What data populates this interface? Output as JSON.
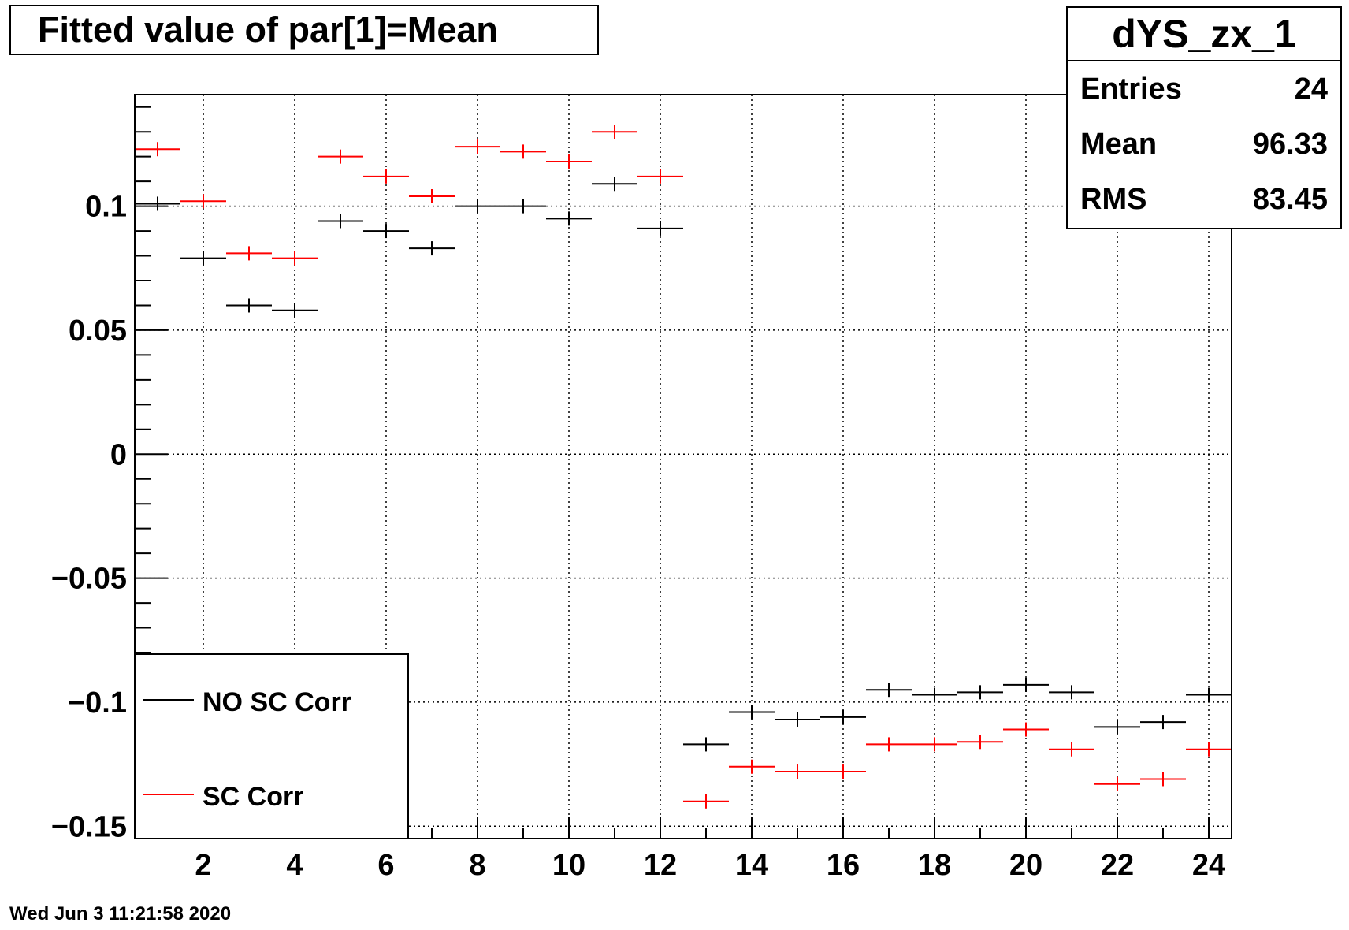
{
  "chart_data": {
    "type": "scatter",
    "title": "Fitted value of par[1]=Mean",
    "xlabel": "",
    "ylabel": "",
    "xlim": [
      0.5,
      24.5
    ],
    "ylim": [
      -0.155,
      0.145
    ],
    "x_ticks": [
      2,
      4,
      6,
      8,
      10,
      12,
      14,
      16,
      18,
      20,
      22,
      24
    ],
    "y_ticks": [
      0.1,
      0.05,
      0,
      -0.05,
      -0.1,
      -0.15
    ],
    "y_tick_labels": [
      "0.1",
      "0.05",
      "0",
      "−0.05",
      "−0.1",
      "−0.15"
    ],
    "grid": true,
    "series": [
      {
        "name": "NO SC Corr",
        "color": "#000000",
        "x": [
          1,
          2,
          3,
          4,
          5,
          6,
          7,
          8,
          9,
          10,
          11,
          12,
          13,
          14,
          15,
          16,
          17,
          18,
          19,
          20,
          21,
          22,
          23,
          24
        ],
        "y": [
          0.101,
          0.079,
          0.06,
          0.058,
          0.094,
          0.09,
          0.083,
          0.1,
          0.1,
          0.095,
          0.109,
          0.091,
          -0.117,
          -0.104,
          -0.107,
          -0.106,
          -0.095,
          -0.097,
          -0.096,
          -0.093,
          -0.096,
          -0.11,
          -0.108,
          -0.097
        ]
      },
      {
        "name": "SC Corr",
        "color": "#ff0000",
        "x": [
          1,
          2,
          3,
          4,
          5,
          6,
          7,
          8,
          9,
          10,
          11,
          12,
          13,
          14,
          15,
          16,
          17,
          18,
          19,
          20,
          21,
          22,
          23,
          24
        ],
        "y": [
          0.123,
          0.102,
          0.081,
          0.079,
          0.12,
          0.112,
          0.104,
          0.124,
          0.122,
          0.118,
          0.13,
          0.112,
          -0.14,
          -0.126,
          -0.128,
          -0.128,
          -0.117,
          -0.117,
          -0.116,
          -0.111,
          -0.119,
          -0.133,
          -0.131,
          -0.119
        ]
      }
    ],
    "legend": {
      "position": "bottom-left",
      "entries": [
        "NO SC Corr",
        "SC Corr"
      ]
    }
  },
  "stats": {
    "name": "dYS_zx_1",
    "rows": [
      {
        "label": "Entries",
        "value": "24"
      },
      {
        "label": "Mean",
        "value": "96.33"
      },
      {
        "label": "RMS",
        "value": "83.45"
      }
    ]
  },
  "footer": {
    "date": "Wed Jun  3 11:21:58 2020"
  }
}
